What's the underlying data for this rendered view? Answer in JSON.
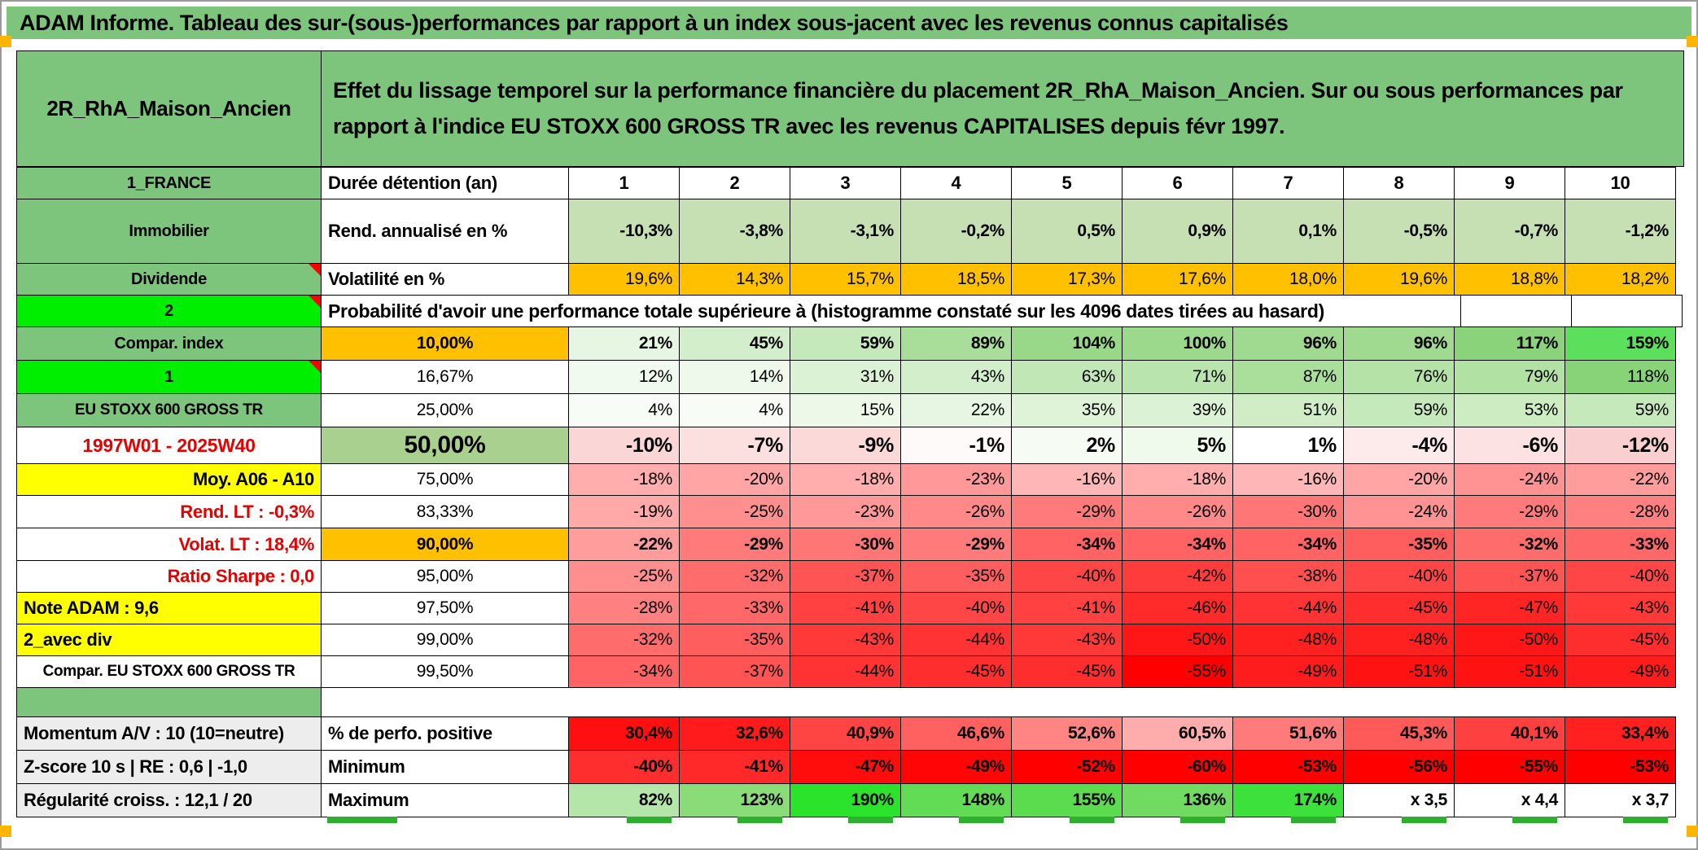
{
  "title": "ADAM Informe. Tableau des sur-(sous-)performances par rapport à un index sous-jacent avec les revenus connus capitalisés",
  "header": {
    "portfolio": "2R_RhA_Maison_Ancien",
    "description": "Effet du lissage temporel sur la performance financière du placement 2R_RhA_Maison_Ancien. Sur ou sous performances par rapport à l'indice EU STOXX 600 GROSS TR avec les revenus CAPITALISES depuis févr 1997."
  },
  "palette": {
    "titleGreen": "#7dc57d",
    "green": "#7dc57d",
    "brightGreen": "#00ef00",
    "orange": "#ffc000",
    "yellow": "#ffff00",
    "lightGreen": "#c6e0b4",
    "oliveGreen": "#a9d08e",
    "grey": "#ededed",
    "red": "#e60000",
    "markerOrange": "#ffb400",
    "clippedGreen": "#2fae2f"
  },
  "grid": {
    "rows": [
      {
        "id": "duree",
        "a": {
          "t": "1_FRANCE",
          "bg": "G",
          "b": 1,
          "al": "c"
        },
        "b": {
          "t": "Durée détention (an)",
          "bg": "W",
          "b": 1,
          "al": "l",
          "fs": 22
        },
        "vals": [
          "1",
          "2",
          "3",
          "4",
          "5",
          "6",
          "7",
          "8",
          "9",
          "10"
        ],
        "bgs": [
          "#ffffff",
          "#ffffff",
          "#ffffff",
          "#ffffff",
          "#ffffff",
          "#ffffff",
          "#ffffff",
          "#ffffff",
          "#ffffff",
          "#ffffff"
        ],
        "cs": {
          "b": 1,
          "al": "c",
          "fs": 22
        }
      },
      {
        "id": "rend",
        "a": {
          "t": "Immobilier",
          "bg": "G",
          "b": 1,
          "al": "c"
        },
        "b": {
          "t": "Rend. annualisé en %",
          "bg": "W",
          "b": 1,
          "al": "l",
          "fs": 22
        },
        "vals": [
          "-10,3%",
          "-3,8%",
          "-3,1%",
          "-0,2%",
          "0,5%",
          "0,9%",
          "0,1%",
          "-0,5%",
          "-0,7%",
          "-1,2%"
        ],
        "bgs": [
          "#c6e0b4",
          "#c6e0b4",
          "#c6e0b4",
          "#c6e0b4",
          "#c6e0b4",
          "#c6e0b4",
          "#c6e0b4",
          "#c6e0b4",
          "#c6e0b4",
          "#c6e0b4"
        ],
        "cs": {
          "b": 1,
          "al": "r",
          "fs": 21
        }
      },
      {
        "id": "volat",
        "a": {
          "t": "Dividende",
          "bg": "G",
          "b": 1,
          "al": "c",
          "tri": 1
        },
        "b": {
          "t": "Volatilité en %",
          "bg": "W",
          "b": 1,
          "al": "l",
          "fs": 22
        },
        "vals": [
          "19,6%",
          "14,3%",
          "15,7%",
          "18,5%",
          "17,3%",
          "17,6%",
          "18,0%",
          "19,6%",
          "18,8%",
          "18,2%"
        ],
        "bgs": [
          "#ffc000",
          "#ffc000",
          "#ffc000",
          "#ffc000",
          "#ffc000",
          "#ffc000",
          "#ffc000",
          "#ffc000",
          "#ffc000",
          "#ffc000"
        ],
        "cs": {
          "b": 0,
          "al": "r",
          "fs": 21
        }
      },
      {
        "id": "proba",
        "a": {
          "t": "2",
          "bg": "BG",
          "b": 1,
          "al": "c",
          "tri": 1
        },
        "merged": {
          "t": "Probabilité d'avoir une performance totale supérieure à (histogramme constaté sur les 4096 dates tirées au hasard)",
          "bg": "W",
          "b": 1,
          "al": "l",
          "fs": 23
        },
        "trail": 2
      },
      {
        "id": "p10",
        "a": {
          "t": "Compar. index",
          "bg": "G",
          "b": 1,
          "al": "c"
        },
        "b": {
          "t": "10,00%",
          "bg": "O",
          "b": 1,
          "al": "c",
          "fs": 21
        },
        "vals": [
          "21%",
          "45%",
          "59%",
          "89%",
          "104%",
          "100%",
          "96%",
          "96%",
          "117%",
          "159%"
        ],
        "bgs": [
          "#e7f6e3",
          "#d3eecb",
          "#c6e9bc",
          "#a8dd9a",
          "#99d889",
          "#9cd98d",
          "#a0da91",
          "#a0da91",
          "#8bd37a",
          "#5ce05c"
        ],
        "cs": {
          "b": 1,
          "al": "r",
          "fs": 21
        }
      },
      {
        "id": "p1667",
        "a": {
          "t": "1",
          "bg": "BG",
          "b": 1,
          "al": "c",
          "tri": 1
        },
        "b": {
          "t": "16,67%",
          "bg": "W",
          "b": 0,
          "al": "c",
          "fs": 21
        },
        "vals": [
          "12%",
          "14%",
          "31%",
          "43%",
          "63%",
          "71%",
          "87%",
          "76%",
          "79%",
          "118%"
        ],
        "bgs": [
          "#f0faee",
          "#eef9ec",
          "#dcf2d4",
          "#d3eecb",
          "#c2e7b6",
          "#bae4ad",
          "#aade9b",
          "#b5e2a7",
          "#b2e1a4",
          "#88d277"
        ],
        "cs": {
          "b": 0,
          "al": "r",
          "fs": 21
        }
      },
      {
        "id": "p25",
        "a": {
          "t": "EU STOXX 600 GROSS TR",
          "bg": "G",
          "b": 1,
          "al": "c",
          "fs": 19
        },
        "b": {
          "t": "25,00%",
          "bg": "W",
          "b": 0,
          "al": "c",
          "fs": 21
        },
        "vals": [
          "4%",
          "4%",
          "15%",
          "22%",
          "35%",
          "39%",
          "51%",
          "59%",
          "53%",
          "59%"
        ],
        "bgs": [
          "#f8fcf6",
          "#f8fcf6",
          "#edf8e9",
          "#e7f6e3",
          "#dff3d8",
          "#dcf2d4",
          "#d0edc6",
          "#c6e9bc",
          "#cdecc2",
          "#c6e9bc"
        ],
        "cs": {
          "b": 0,
          "al": "r",
          "fs": 21
        }
      },
      {
        "id": "p50",
        "a": {
          "t": "1997W01 - 2025W40",
          "bg": "W",
          "fg": "R",
          "b": 1,
          "al": "c",
          "fs": 23
        },
        "b": {
          "t": "50,00%",
          "bg": "OG",
          "b": 1,
          "al": "c",
          "fs": 30
        },
        "vals": [
          "-10%",
          "-7%",
          "-9%",
          "-1%",
          "2%",
          "5%",
          "1%",
          "-4%",
          "-6%",
          "-12%"
        ],
        "bgs": [
          "#fbd6d6",
          "#fcdfdf",
          "#fbd9d9",
          "#fefafa",
          "#f6fbf4",
          "#eff9ec",
          "#ffffff",
          "#fdeaea",
          "#fce2e2",
          "#facfcf"
        ],
        "cs": {
          "b": 1,
          "al": "r",
          "fs": 25
        }
      },
      {
        "id": "p75",
        "a": {
          "t": "Moy. A06 - A10",
          "bg": "Y",
          "b": 1,
          "al": "r",
          "fs": 22
        },
        "b": {
          "t": "75,00%",
          "bg": "W",
          "b": 0,
          "al": "c",
          "fs": 21
        },
        "vals": [
          "-18%",
          "-20%",
          "-18%",
          "-23%",
          "-16%",
          "-18%",
          "-16%",
          "-20%",
          "-24%",
          "-22%"
        ],
        "bgs": [
          "#ffadad",
          "#ffa5a5",
          "#ffadad",
          "#ff9898",
          "#ffb6b6",
          "#ffadad",
          "#ffb6b6",
          "#ffa5a5",
          "#ff9393",
          "#ff9d9d"
        ],
        "cs": {
          "b": 0,
          "al": "r",
          "fs": 21
        }
      },
      {
        "id": "p8333",
        "a": {
          "t": "Rend. LT :   -0,3%",
          "bg": "W",
          "fg": "R",
          "b": 1,
          "al": "r",
          "fs": 22
        },
        "b": {
          "t": "83,33%",
          "bg": "W",
          "b": 0,
          "al": "c",
          "fs": 21
        },
        "vals": [
          "-19%",
          "-25%",
          "-23%",
          "-26%",
          "-29%",
          "-26%",
          "-30%",
          "-24%",
          "-29%",
          "-28%"
        ],
        "bgs": [
          "#ffa9a9",
          "#ff8e8e",
          "#ff9898",
          "#ff8989",
          "#ff7b7b",
          "#ff8989",
          "#ff7676",
          "#ff9393",
          "#ff7b7b",
          "#ff8080"
        ],
        "cs": {
          "b": 0,
          "al": "r",
          "fs": 21
        }
      },
      {
        "id": "p90",
        "a": {
          "t": "Volat. LT :   18,4%",
          "bg": "W",
          "fg": "R",
          "b": 1,
          "al": "r",
          "fs": 22
        },
        "b": {
          "t": "90,00%",
          "bg": "O",
          "b": 1,
          "al": "c",
          "fs": 21
        },
        "vals": [
          "-22%",
          "-29%",
          "-30%",
          "-29%",
          "-34%",
          "-34%",
          "-34%",
          "-35%",
          "-32%",
          "-33%"
        ],
        "bgs": [
          "#ff9d9d",
          "#ff7b7b",
          "#ff7676",
          "#ff7b7b",
          "#ff6363",
          "#ff6363",
          "#ff6363",
          "#ff5e5e",
          "#ff6c6c",
          "#ff6868"
        ],
        "cs": {
          "b": 1,
          "al": "r",
          "fs": 21
        }
      },
      {
        "id": "p95",
        "a": {
          "t": "Ratio Sharpe :   0,0",
          "bg": "W",
          "fg": "R",
          "b": 1,
          "al": "r",
          "fs": 22
        },
        "b": {
          "t": "95,00%",
          "bg": "W",
          "b": 0,
          "al": "c",
          "fs": 21
        },
        "vals": [
          "-25%",
          "-32%",
          "-37%",
          "-35%",
          "-40%",
          "-42%",
          "-38%",
          "-40%",
          "-37%",
          "-40%"
        ],
        "bgs": [
          "#ff8e8e",
          "#ff6c6c",
          "#ff5454",
          "#ff5e5e",
          "#ff4646",
          "#ff3c3c",
          "#ff4f4f",
          "#ff4646",
          "#ff5454",
          "#ff4646"
        ],
        "cs": {
          "b": 0,
          "al": "r",
          "fs": 21
        }
      },
      {
        "id": "p975",
        "a": {
          "t": "Note ADAM : 9,6",
          "bg": "Y",
          "b": 1,
          "al": "l",
          "fs": 22
        },
        "b": {
          "t": "97,50%",
          "bg": "W",
          "b": 0,
          "al": "c",
          "fs": 21
        },
        "vals": [
          "-28%",
          "-33%",
          "-41%",
          "-40%",
          "-41%",
          "-46%",
          "-44%",
          "-45%",
          "-47%",
          "-43%"
        ],
        "bgs": [
          "#ff8080",
          "#ff6868",
          "#ff4141",
          "#ff4646",
          "#ff4141",
          "#ff2a2a",
          "#ff3333",
          "#ff2e2e",
          "#ff2525",
          "#ff3838"
        ],
        "cs": {
          "b": 0,
          "al": "r",
          "fs": 21
        }
      },
      {
        "id": "p99",
        "a": {
          "t": "2_avec div",
          "bg": "Y",
          "b": 1,
          "al": "l",
          "fs": 22
        },
        "b": {
          "t": "99,00%",
          "bg": "W",
          "b": 0,
          "al": "c",
          "fs": 21
        },
        "vals": [
          "-32%",
          "-35%",
          "-43%",
          "-44%",
          "-43%",
          "-50%",
          "-48%",
          "-48%",
          "-50%",
          "-45%"
        ],
        "bgs": [
          "#ff6c6c",
          "#ff5e5e",
          "#ff3838",
          "#ff3333",
          "#ff3838",
          "#ff1717",
          "#ff2020",
          "#ff2020",
          "#ff1717",
          "#ff2e2e"
        ],
        "cs": {
          "b": 0,
          "al": "r",
          "fs": 21
        }
      },
      {
        "id": "p995",
        "a": {
          "t": "Compar. EU STOXX 600 GROSS TR",
          "bg": "W",
          "b": 1,
          "al": "c",
          "fs": 19
        },
        "b": {
          "t": "99,50%",
          "bg": "W",
          "b": 0,
          "al": "c",
          "fs": 21
        },
        "vals": [
          "-34%",
          "-37%",
          "-44%",
          "-45%",
          "-45%",
          "-55%",
          "-49%",
          "-51%",
          "-51%",
          "-49%"
        ],
        "bgs": [
          "#ff6363",
          "#ff5454",
          "#ff3333",
          "#ff2e2e",
          "#ff2e2e",
          "#ff0000",
          "#ff1c1c",
          "#ff1212",
          "#ff1212",
          "#ff1c1c"
        ],
        "cs": {
          "b": 0,
          "al": "r",
          "fs": 21
        }
      },
      {
        "id": "spacer",
        "a": {
          "t": "",
          "bg": "G"
        }
      },
      {
        "id": "perfo",
        "a": {
          "t": "Momentum A/V : 10 (10=neutre)",
          "bg": "GY",
          "b": 1,
          "al": "l",
          "fs": 22
        },
        "b": {
          "t": "% de perfo. positive",
          "bg": "W",
          "b": 1,
          "al": "l",
          "fs": 22
        },
        "vals": [
          "30,4%",
          "32,6%",
          "40,9%",
          "46,6%",
          "52,6%",
          "60,5%",
          "51,6%",
          "45,3%",
          "40,1%",
          "33,4%"
        ],
        "bgs": [
          "#ff0f0f",
          "#ff1b1b",
          "#ff4444",
          "#ff6161",
          "#ff8484",
          "#ffacac",
          "#ff7b7b",
          "#ff5a5a",
          "#ff4040",
          "#ff2020"
        ],
        "cs": {
          "b": 1,
          "al": "r",
          "fs": 21
        }
      },
      {
        "id": "minimum",
        "a": {
          "t": "Z-score 10 s | RE : 0,6 | -1,0",
          "bg": "GY",
          "b": 1,
          "al": "l",
          "fs": 22
        },
        "b": {
          "t": "Minimum",
          "bg": "W",
          "b": 1,
          "al": "l",
          "fs": 22
        },
        "vals": [
          "-40%",
          "-41%",
          "-47%",
          "-49%",
          "-52%",
          "-60%",
          "-53%",
          "-56%",
          "-55%",
          "-53%"
        ],
        "bgs": [
          "#ff2e2e",
          "#ff2929",
          "#ff0d0d",
          "#ff0505",
          "#ff0000",
          "#ff0000",
          "#ff0000",
          "#ff0000",
          "#ff0000",
          "#ff0000"
        ],
        "cs": {
          "b": 1,
          "al": "r",
          "fs": 21
        }
      },
      {
        "id": "maximum",
        "a": {
          "t": "Régularité croiss. : 12,1 / 20",
          "bg": "GY",
          "b": 1,
          "al": "l",
          "fs": 22
        },
        "b": {
          "t": "Maximum",
          "bg": "W",
          "b": 1,
          "al": "l",
          "fs": 22
        },
        "vals": [
          "82%",
          "123%",
          "190%",
          "148%",
          "155%",
          "136%",
          "174%",
          "x 3,5",
          "x 4,4",
          "x 3,7"
        ],
        "bgs": [
          "#b5e6a9",
          "#8adc79",
          "#2ce32c",
          "#63dc55",
          "#5bdc4e",
          "#71da60",
          "#3ce13c",
          "#ffffff",
          "#ffffff",
          "#ffffff"
        ],
        "cs": {
          "b": 1,
          "al": "r",
          "fs": 21
        }
      },
      {
        "id": "clipped"
      }
    ]
  }
}
